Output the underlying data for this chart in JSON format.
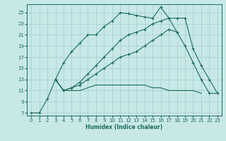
{
  "xlabel": "Humidex (Indice chaleur)",
  "bg_color": "#c8e8e8",
  "grid_color": "#a8d0d0",
  "line_color": "#1a6b5a",
  "xlim": [
    -0.5,
    23.5
  ],
  "ylim": [
    6.5,
    26.5
  ],
  "yticks": [
    7,
    9,
    11,
    13,
    15,
    17,
    19,
    21,
    23,
    25
  ],
  "xticks": [
    0,
    1,
    2,
    3,
    4,
    5,
    6,
    7,
    8,
    9,
    10,
    11,
    12,
    13,
    14,
    15,
    16,
    17,
    18,
    19,
    20,
    21,
    22,
    23
  ],
  "lines": [
    {
      "x": [
        0,
        1,
        2,
        3,
        4,
        5,
        6,
        7,
        8,
        9,
        10,
        11,
        12,
        13,
        14,
        15,
        16,
        17,
        18
      ],
      "y": [
        7,
        7,
        9.5,
        13,
        16,
        18,
        19.5,
        21,
        21,
        22.5,
        23.5,
        25,
        24.8,
        24.5,
        24.2,
        24,
        26,
        24,
        21.5
      ],
      "marker": true
    },
    {
      "x": [
        3,
        4,
        5,
        6,
        7,
        8,
        9,
        10,
        11,
        12,
        13,
        14,
        15,
        16,
        17,
        18,
        19,
        20,
        21
      ],
      "y": [
        13,
        11,
        11,
        11,
        11.5,
        12,
        12,
        12,
        12,
        12,
        12,
        12,
        11.5,
        11.5,
        11,
        11,
        11,
        11,
        10.5
      ],
      "marker": false
    },
    {
      "x": [
        3,
        4,
        5,
        6,
        7,
        8,
        9,
        10,
        11,
        12,
        13,
        14,
        15,
        16,
        17,
        18,
        19,
        20,
        21,
        22,
        23
      ],
      "y": [
        13,
        11,
        11.5,
        12.5,
        14,
        15.5,
        17,
        18.5,
        20,
        21,
        21.5,
        22,
        23,
        23.5,
        24,
        24,
        24,
        18.5,
        15.5,
        13,
        10.5
      ],
      "marker": true
    },
    {
      "x": [
        3,
        4,
        5,
        6,
        7,
        8,
        9,
        10,
        11,
        12,
        13,
        14,
        15,
        16,
        17,
        18,
        19,
        20,
        21,
        22,
        23
      ],
      "y": [
        13,
        11,
        11.5,
        12,
        13,
        14,
        15,
        16,
        17,
        17.5,
        18,
        19,
        20,
        21,
        22,
        21.5,
        19,
        16,
        13,
        10.5,
        10.5
      ],
      "marker": true
    }
  ]
}
